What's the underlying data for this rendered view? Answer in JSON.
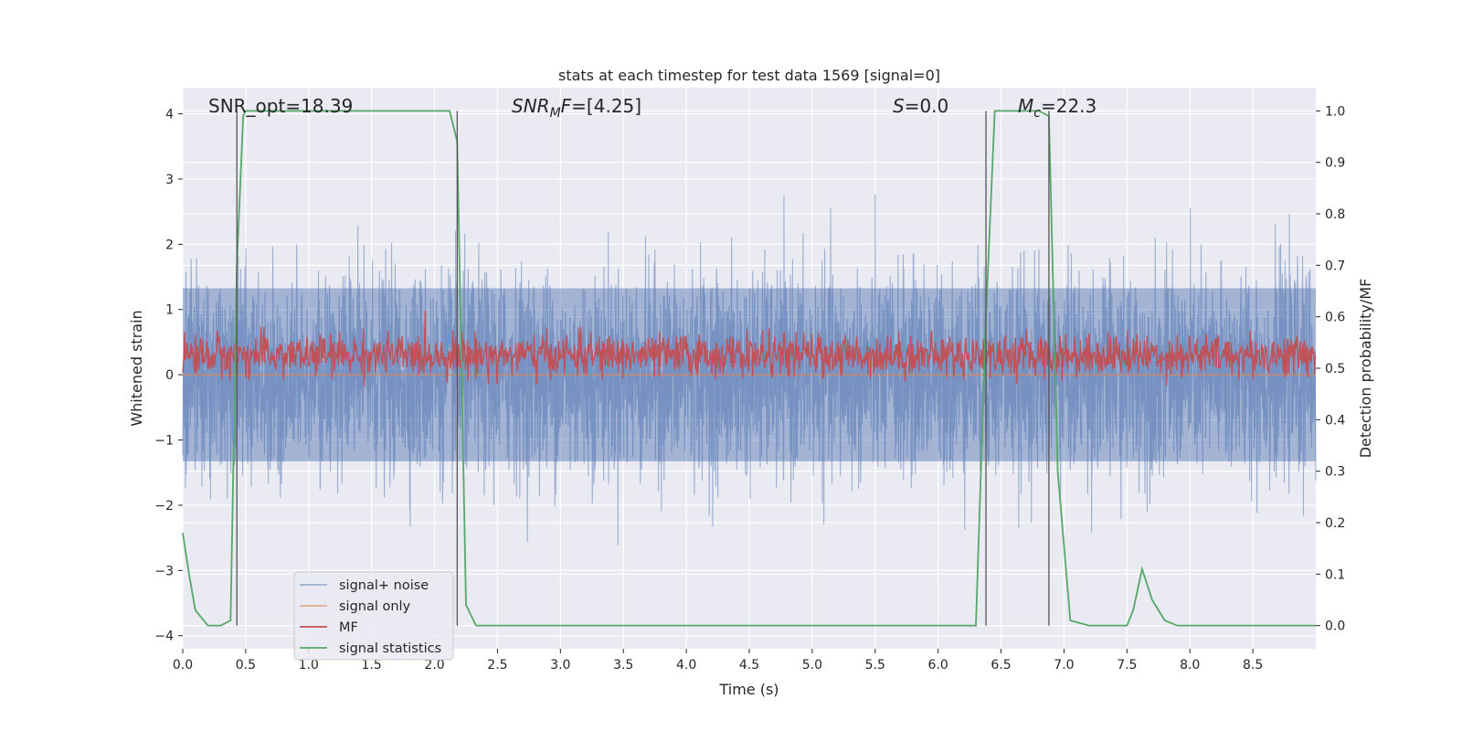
{
  "chart_data": {
    "type": "line",
    "title": "stats at each timestep for test data 1569 [signal=0]",
    "xlabel": "Time (s)",
    "ylabel": "Whitened strain",
    "y2label": "Detection probability/MF",
    "xlim": [
      0.0,
      9.0
    ],
    "ylim": [
      -4.2,
      4.4
    ],
    "y2lim": [
      -0.045,
      1.045
    ],
    "xticks": [
      "0.0",
      "0.5",
      "1.0",
      "1.5",
      "2.0",
      "2.5",
      "3.0",
      "3.5",
      "4.0",
      "4.5",
      "5.0",
      "5.5",
      "6.0",
      "6.5",
      "7.0",
      "7.5",
      "8.0",
      "8.5"
    ],
    "yticks": [
      "4",
      "3",
      "2",
      "1",
      "0",
      "−1",
      "−2",
      "−3",
      "−4"
    ],
    "y2ticks": [
      "1.0",
      "0.9",
      "0.8",
      "0.7",
      "0.6",
      "0.5",
      "0.4",
      "0.3",
      "0.2",
      "0.1",
      "0.0"
    ],
    "grid": true,
    "legend_position": "lower-left",
    "annotations": {
      "snr_opt": "SNR_opt=18.39",
      "snr_mf_var": "SNR",
      "snr_mf_sub": "M",
      "snr_mf_var2": "F",
      "snr_mf_val": "=[4.25]",
      "s_var": "S",
      "s_val": "=0.0",
      "mc_var": "M",
      "mc_sub": "c",
      "mc_val": "=22.3"
    },
    "vertical_lines_x": [
      0.43,
      2.18,
      6.38,
      6.88
    ],
    "series": [
      {
        "name": "signal+ noise",
        "color": "#4c72b0",
        "axis": "left",
        "style": "noise",
        "x_range": [
          0.0,
          9.0
        ],
        "envelope_center": 0.0,
        "envelope_typical": 1.7,
        "envelope_peak": 3.6
      },
      {
        "name": "signal only",
        "color": "#dd8452",
        "axis": "left",
        "x": [
          0.0,
          9.0
        ],
        "y": [
          0.0,
          0.0
        ]
      },
      {
        "name": "MF",
        "color": "#c44e52",
        "axis": "left",
        "style": "noise",
        "x_range": [
          0.0,
          9.0
        ],
        "envelope_center": 0.3,
        "envelope_typical": 0.35,
        "envelope_peak": 1.0
      },
      {
        "name": "signal statistics",
        "color": "#55a868",
        "axis": "right",
        "x": [
          0.0,
          0.05,
          0.1,
          0.2,
          0.3,
          0.38,
          0.43,
          0.48,
          0.5,
          0.6,
          1.0,
          1.5,
          2.0,
          2.12,
          2.18,
          2.25,
          2.33,
          2.5,
          3.0,
          4.0,
          5.0,
          6.0,
          6.3,
          6.38,
          6.45,
          6.5,
          6.8,
          6.88,
          6.95,
          7.05,
          7.2,
          7.5,
          7.55,
          7.62,
          7.7,
          7.8,
          7.9,
          8.0,
          8.5,
          9.0
        ],
        "y": [
          0.18,
          0.1,
          0.03,
          0.0,
          0.0,
          0.01,
          0.7,
          0.99,
          1.0,
          1.0,
          1.0,
          1.0,
          1.0,
          1.0,
          0.94,
          0.04,
          0.0,
          0.0,
          0.0,
          0.0,
          0.0,
          0.0,
          0.0,
          0.6,
          1.0,
          1.0,
          1.0,
          0.99,
          0.3,
          0.01,
          0.0,
          0.0,
          0.03,
          0.11,
          0.05,
          0.01,
          0.0,
          0.0,
          0.0,
          0.0
        ]
      }
    ]
  }
}
